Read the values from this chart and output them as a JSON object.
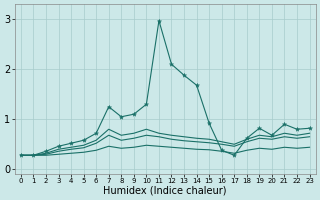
{
  "xlabel": "Humidex (Indice chaleur)",
  "bg_color": "#cce8e8",
  "grid_color": "#a8cccc",
  "line_color": "#1a7068",
  "xlim": [
    -0.5,
    23.5
  ],
  "ylim": [
    -0.1,
    3.3
  ],
  "xticks": [
    0,
    1,
    2,
    3,
    4,
    5,
    6,
    7,
    8,
    9,
    10,
    11,
    12,
    13,
    14,
    15,
    16,
    17,
    18,
    19,
    20,
    21,
    22,
    23
  ],
  "yticks": [
    0,
    1,
    2,
    3
  ],
  "line_marked": [
    0.28,
    0.28,
    0.36,
    0.46,
    0.52,
    0.58,
    0.72,
    1.25,
    1.05,
    1.1,
    1.3,
    2.97,
    2.1,
    1.88,
    1.68,
    0.92,
    0.38,
    0.28,
    0.62,
    0.82,
    0.68,
    0.9,
    0.8,
    0.82
  ],
  "lines_plain": [
    [
      0.28,
      0.28,
      0.32,
      0.4,
      0.44,
      0.48,
      0.58,
      0.8,
      0.68,
      0.72,
      0.8,
      0.72,
      0.68,
      0.65,
      0.62,
      0.6,
      0.55,
      0.5,
      0.6,
      0.68,
      0.65,
      0.72,
      0.68,
      0.72
    ],
    [
      0.28,
      0.28,
      0.3,
      0.36,
      0.4,
      0.43,
      0.52,
      0.68,
      0.58,
      0.62,
      0.68,
      0.65,
      0.6,
      0.57,
      0.55,
      0.53,
      0.5,
      0.46,
      0.55,
      0.62,
      0.6,
      0.65,
      0.62,
      0.65
    ],
    [
      0.28,
      0.28,
      0.28,
      0.3,
      0.32,
      0.34,
      0.38,
      0.46,
      0.42,
      0.44,
      0.48,
      0.46,
      0.44,
      0.42,
      0.4,
      0.39,
      0.36,
      0.32,
      0.38,
      0.42,
      0.4,
      0.44,
      0.42,
      0.44
    ]
  ]
}
